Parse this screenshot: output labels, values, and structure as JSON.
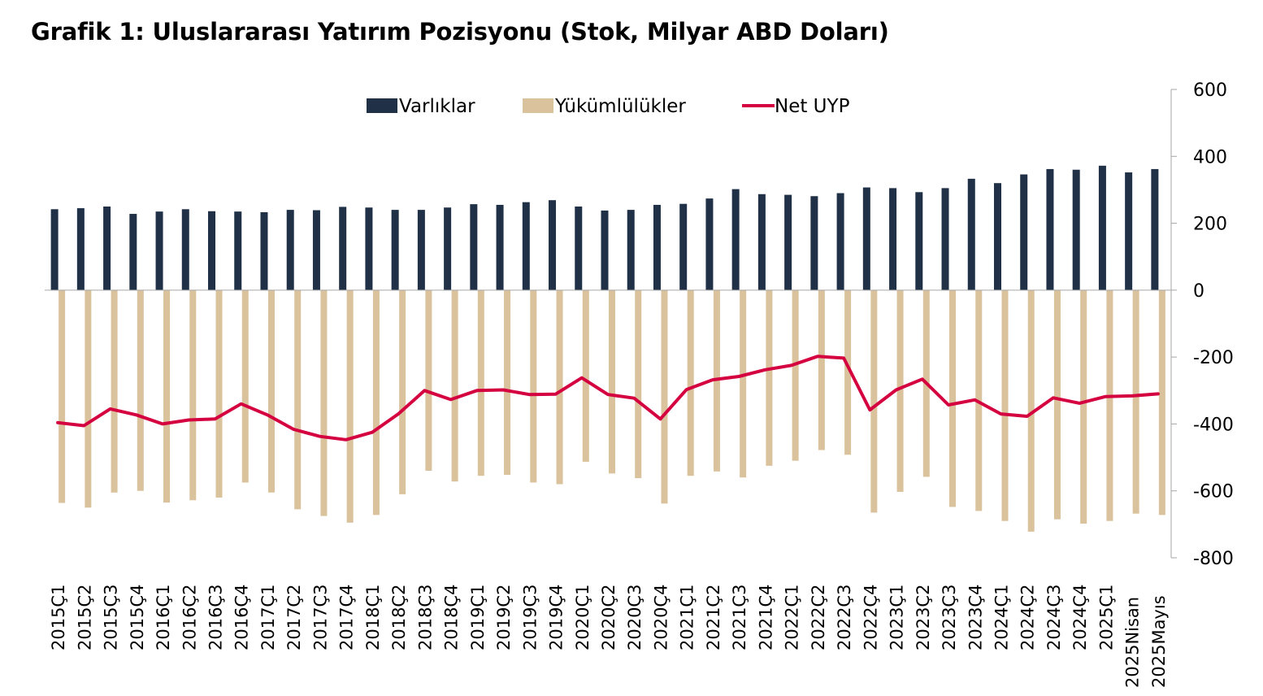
{
  "title": "Grafik 1: Uluslararası Yatırım Pozisyonu (Stok, Milyar ABD Doları)",
  "chart_data": {
    "type": "bar",
    "categories": [
      "2015Ç1",
      "2015Ç2",
      "2015Ç3",
      "2015Ç4",
      "2016Ç1",
      "2016Ç2",
      "2016Ç3",
      "2016Ç4",
      "2017Ç1",
      "2017Ç2",
      "2017Ç3",
      "2017Ç4",
      "2018Ç1",
      "2018Ç2",
      "2018Ç3",
      "2018Ç4",
      "2019Ç1",
      "2019Ç2",
      "2019Ç3",
      "2019Ç4",
      "2020Ç1",
      "2020Ç2",
      "2020Ç3",
      "2020Ç4",
      "2021Ç1",
      "2021Ç2",
      "2021Ç3",
      "2021Ç4",
      "2022Ç1",
      "2022Ç2",
      "2022Ç3",
      "2022Ç4",
      "2023Ç1",
      "2023Ç2",
      "2023Ç3",
      "2023Ç4",
      "2024Ç1",
      "2024Ç2",
      "2024Ç3",
      "2024Ç4",
      "2025Ç1",
      "2025Nisan",
      "2025Mayıs"
    ],
    "series": [
      {
        "name": "Varlıklar",
        "kind": "bar",
        "color": "#1f3047",
        "values": [
          242,
          245,
          250,
          228,
          235,
          242,
          236,
          235,
          233,
          240,
          239,
          249,
          247,
          240,
          240,
          247,
          257,
          255,
          263,
          269,
          250,
          238,
          240,
          255,
          258,
          274,
          302,
          287,
          285,
          281,
          290,
          307,
          305,
          293,
          305,
          333,
          320,
          346,
          362,
          360,
          372,
          352,
          362
        ]
      },
      {
        "name": "Yükümlülükler",
        "kind": "bar",
        "color": "#d9c29c",
        "values": [
          -636,
          -650,
          -605,
          -600,
          -635,
          -628,
          -620,
          -575,
          -605,
          -655,
          -675,
          -695,
          -672,
          -610,
          -540,
          -572,
          -555,
          -552,
          -575,
          -580,
          -513,
          -548,
          -562,
          -638,
          -555,
          -542,
          -560,
          -525,
          -510,
          -478,
          -492,
          -665,
          -603,
          -558,
          -648,
          -660,
          -690,
          -722,
          -685,
          -698,
          -690,
          -668,
          -672
        ]
      },
      {
        "name": "Net UYP",
        "kind": "line",
        "color": "#d4003f",
        "values": [
          -396,
          -405,
          -355,
          -373,
          -400,
          -388,
          -385,
          -340,
          -373,
          -416,
          -437,
          -447,
          -425,
          -370,
          -300,
          -327,
          -300,
          -298,
          -312,
          -311,
          -262,
          -312,
          -323,
          -385,
          -297,
          -268,
          -258,
          -238,
          -225,
          -198,
          -203,
          -358,
          -298,
          -266,
          -343,
          -328,
          -370,
          -377,
          -322,
          -338,
          -318,
          -316,
          -310
        ]
      }
    ],
    "y_axis": {
      "position": "right",
      "ylim": [
        -800,
        600
      ],
      "ticks": [
        600,
        400,
        200,
        0,
        -200,
        -400,
        -600,
        -800
      ],
      "tick_labels": [
        "600",
        "400",
        "200",
        "0",
        "-200",
        "-400",
        "-600",
        "-800"
      ]
    },
    "legend": {
      "placement": "top",
      "entries": [
        "Varlıklar",
        "Yükümlülükler",
        "Net UYP"
      ]
    },
    "grid": false,
    "xlabel": "",
    "ylabel": ""
  }
}
